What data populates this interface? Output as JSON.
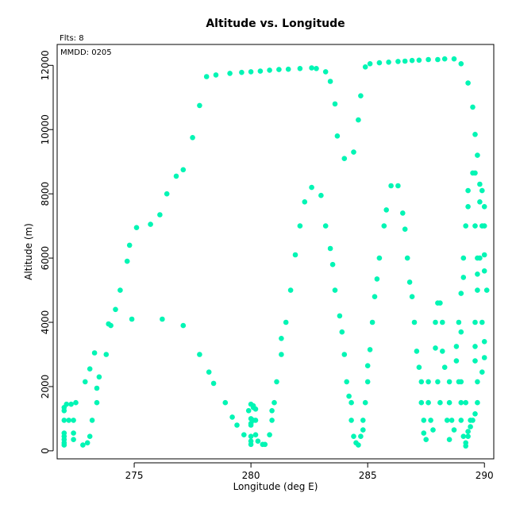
{
  "chart_data": {
    "type": "scatter",
    "title": "Altitude vs. Longitude",
    "xlabel": "Longitude (deg E)",
    "ylabel": "Altitude (m)",
    "annotations": {
      "flights": "Flts: 8",
      "date": "MMDD: 0205"
    },
    "xlim": [
      271.7,
      290.4
    ],
    "ylim": [
      -250,
      12650
    ],
    "xticks": [
      275,
      280,
      285,
      290
    ],
    "yticks": [
      0,
      2000,
      4000,
      6000,
      8000,
      10000,
      12000
    ],
    "grid": false,
    "point_color": "#00f5b4",
    "series": [
      {
        "points": [
          [
            272.0,
            1350
          ],
          [
            272.1,
            1450
          ],
          [
            272.0,
            1250
          ],
          [
            272.3,
            1450
          ],
          [
            272.0,
            950
          ],
          [
            272.2,
            950
          ],
          [
            272.4,
            950
          ],
          [
            272.0,
            550
          ],
          [
            272.0,
            450
          ],
          [
            272.0,
            350
          ],
          [
            272.0,
            250
          ],
          [
            272.0,
            180
          ],
          [
            272.4,
            550
          ],
          [
            272.5,
            1500
          ],
          [
            272.4,
            350
          ],
          [
            272.8,
            180
          ],
          [
            273.0,
            250
          ],
          [
            273.1,
            450
          ],
          [
            273.2,
            950
          ],
          [
            272.9,
            2150
          ],
          [
            273.1,
            2550
          ],
          [
            273.4,
            1500
          ],
          [
            273.4,
            1950
          ],
          [
            273.5,
            2300
          ],
          [
            273.3,
            3050
          ],
          [
            273.8,
            3000
          ],
          [
            273.9,
            3950
          ],
          [
            274.0,
            3900
          ],
          [
            274.2,
            4400
          ],
          [
            274.4,
            5000
          ],
          [
            274.7,
            5900
          ],
          [
            274.8,
            6400
          ],
          [
            274.9,
            4100
          ],
          [
            275.1,
            6950
          ],
          [
            275.7,
            7050
          ],
          [
            276.1,
            7350
          ],
          [
            276.2,
            4100
          ],
          [
            276.4,
            8000
          ],
          [
            276.8,
            8550
          ],
          [
            277.1,
            8750
          ],
          [
            277.1,
            3900
          ],
          [
            277.5,
            9750
          ],
          [
            277.8,
            10750
          ],
          [
            277.8,
            3000
          ],
          [
            278.1,
            11650
          ],
          [
            278.2,
            2450
          ],
          [
            278.4,
            2100
          ],
          [
            278.5,
            11700
          ],
          [
            278.9,
            1500
          ],
          [
            279.1,
            11750
          ],
          [
            279.2,
            1050
          ],
          [
            279.4,
            800
          ],
          [
            279.6,
            11780
          ],
          [
            279.7,
            500
          ],
          [
            279.9,
            1250
          ],
          [
            280.0,
            11800
          ],
          [
            280.0,
            1450
          ],
          [
            280.1,
            1400
          ],
          [
            280.1,
            1350
          ],
          [
            280.2,
            1300
          ],
          [
            280.0,
            1000
          ],
          [
            280.0,
            850
          ],
          [
            280.0,
            800
          ],
          [
            280.0,
            450
          ],
          [
            280.0,
            300
          ],
          [
            280.0,
            200
          ],
          [
            280.1,
            950
          ],
          [
            280.2,
            950
          ],
          [
            280.2,
            500
          ],
          [
            280.3,
            300
          ],
          [
            280.4,
            11820
          ],
          [
            280.5,
            200
          ],
          [
            280.6,
            200
          ],
          [
            280.8,
            11850
          ],
          [
            280.8,
            500
          ],
          [
            280.9,
            950
          ],
          [
            280.9,
            1250
          ],
          [
            281.0,
            1500
          ],
          [
            281.1,
            2150
          ],
          [
            281.2,
            11870
          ],
          [
            281.3,
            3000
          ],
          [
            281.3,
            3500
          ],
          [
            281.5,
            4000
          ],
          [
            281.6,
            11880
          ],
          [
            281.7,
            5000
          ],
          [
            281.9,
            6100
          ],
          [
            282.1,
            7000
          ],
          [
            282.1,
            11900
          ],
          [
            282.3,
            7750
          ],
          [
            282.6,
            11920
          ],
          [
            282.6,
            8200
          ],
          [
            282.8,
            11900
          ],
          [
            283.0,
            7950
          ],
          [
            283.2,
            7000
          ],
          [
            283.2,
            11800
          ],
          [
            283.4,
            11500
          ],
          [
            283.4,
            6300
          ],
          [
            283.5,
            5800
          ],
          [
            283.6,
            10800
          ],
          [
            283.6,
            5000
          ],
          [
            283.7,
            9800
          ],
          [
            283.8,
            4200
          ],
          [
            283.9,
            3700
          ],
          [
            284.0,
            9100
          ],
          [
            284.0,
            3000
          ],
          [
            284.1,
            2150
          ],
          [
            284.2,
            1700
          ],
          [
            284.3,
            1500
          ],
          [
            284.3,
            950
          ],
          [
            284.4,
            9300
          ],
          [
            284.4,
            450
          ],
          [
            284.5,
            250
          ],
          [
            284.6,
            10300
          ],
          [
            284.6,
            180
          ],
          [
            284.7,
            11050
          ],
          [
            284.7,
            450
          ],
          [
            284.8,
            650
          ],
          [
            284.8,
            950
          ],
          [
            284.9,
            11950
          ],
          [
            284.9,
            1500
          ],
          [
            285.0,
            2150
          ],
          [
            285.0,
            2650
          ],
          [
            285.1,
            3150
          ],
          [
            285.1,
            12050
          ],
          [
            285.2,
            4000
          ],
          [
            285.3,
            4800
          ],
          [
            285.4,
            5350
          ],
          [
            285.5,
            6000
          ],
          [
            285.5,
            12080
          ],
          [
            285.7,
            7000
          ],
          [
            285.8,
            7500
          ],
          [
            285.9,
            12100
          ],
          [
            286.0,
            8250
          ],
          [
            286.3,
            12120
          ],
          [
            286.3,
            8250
          ],
          [
            286.5,
            7400
          ],
          [
            286.6,
            6900
          ],
          [
            286.6,
            12130
          ],
          [
            286.7,
            6000
          ],
          [
            286.8,
            5250
          ],
          [
            286.9,
            4800
          ],
          [
            286.9,
            12150
          ],
          [
            287.0,
            4000
          ],
          [
            287.1,
            3100
          ],
          [
            287.2,
            12160
          ],
          [
            287.2,
            2600
          ],
          [
            287.3,
            2150
          ],
          [
            287.3,
            1500
          ],
          [
            287.4,
            950
          ],
          [
            287.4,
            550
          ],
          [
            287.5,
            350
          ],
          [
            287.6,
            2150
          ],
          [
            287.6,
            1500
          ],
          [
            287.6,
            12180
          ],
          [
            287.7,
            950
          ],
          [
            287.8,
            650
          ],
          [
            287.9,
            3200
          ],
          [
            287.9,
            4000
          ],
          [
            288.0,
            4600
          ],
          [
            288.0,
            2150
          ],
          [
            288.0,
            12180
          ],
          [
            288.1,
            4600
          ],
          [
            288.1,
            1500
          ],
          [
            288.2,
            4000
          ],
          [
            288.2,
            3100
          ],
          [
            288.3,
            2600
          ],
          [
            288.3,
            12200
          ],
          [
            288.4,
            950
          ],
          [
            288.5,
            2150
          ],
          [
            288.5,
            1500
          ],
          [
            288.5,
            350
          ],
          [
            288.6,
            950
          ],
          [
            288.7,
            650
          ],
          [
            288.7,
            12200
          ],
          [
            288.8,
            2800
          ],
          [
            288.8,
            3250
          ],
          [
            288.9,
            2150
          ],
          [
            288.9,
            4000
          ],
          [
            289.0,
            4900
          ],
          [
            289.0,
            12050
          ],
          [
            289.0,
            3700
          ],
          [
            289.1,
            5400
          ],
          [
            289.1,
            6000
          ],
          [
            289.2,
            7000
          ],
          [
            289.2,
            1500
          ],
          [
            289.3,
            8100
          ],
          [
            289.3,
            7600
          ],
          [
            289.3,
            11450
          ],
          [
            289.0,
            2150
          ],
          [
            289.0,
            1500
          ],
          [
            289.0,
            950
          ],
          [
            289.1,
            450
          ],
          [
            289.2,
            250
          ],
          [
            289.2,
            150
          ],
          [
            289.3,
            600
          ],
          [
            289.4,
            950
          ],
          [
            289.5,
            10700
          ],
          [
            289.5,
            8650
          ],
          [
            289.6,
            9850
          ],
          [
            289.6,
            8650
          ],
          [
            289.7,
            9200
          ],
          [
            289.6,
            7000
          ],
          [
            289.7,
            6000
          ],
          [
            289.7,
            5500
          ],
          [
            289.7,
            5000
          ],
          [
            289.6,
            4000
          ],
          [
            289.6,
            3250
          ],
          [
            289.6,
            2800
          ],
          [
            289.7,
            2150
          ],
          [
            289.7,
            1500
          ],
          [
            289.6,
            1150
          ],
          [
            289.5,
            950
          ],
          [
            289.4,
            750
          ],
          [
            289.3,
            450
          ],
          [
            289.8,
            7750
          ],
          [
            289.8,
            8300
          ],
          [
            289.9,
            8100
          ],
          [
            289.9,
            7000
          ],
          [
            290.0,
            7000
          ],
          [
            290.0,
            6100
          ],
          [
            289.9,
            4000
          ],
          [
            290.0,
            3400
          ],
          [
            290.0,
            2900
          ],
          [
            289.9,
            2450
          ],
          [
            290.0,
            5600
          ],
          [
            290.1,
            5000
          ],
          [
            290.0,
            7600
          ],
          [
            289.8,
            6000
          ]
        ]
      }
    ]
  }
}
